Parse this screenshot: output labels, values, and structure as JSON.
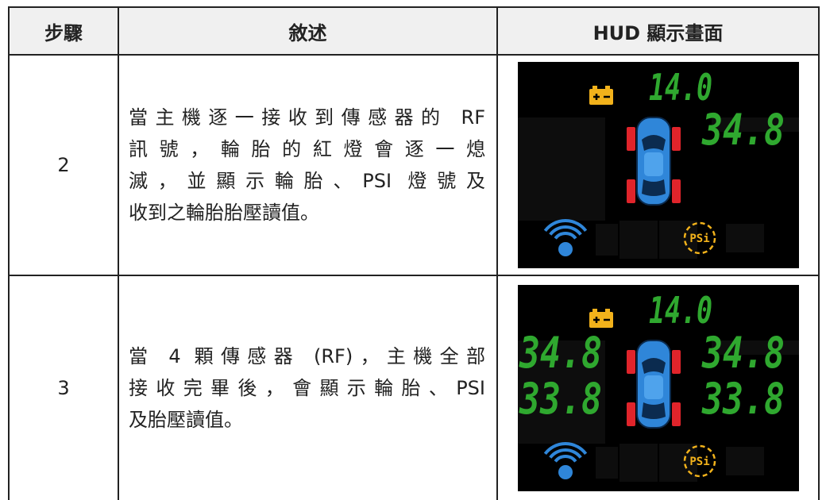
{
  "table": {
    "header": [
      "步驟",
      "敘述",
      "HUD 顯示畫面"
    ],
    "rows": [
      {
        "step": "2",
        "description": [
          "當主機逐一接收到傳感器的 RF",
          "訊號，輪胎的紅燈會逐一熄",
          "滅，並顯示輪胎、PSI 燈號及",
          "收到之輪胎胎壓讀值。"
        ],
        "hud": {
          "voltage": "14.0",
          "front_right": "34.8",
          "unit": "PSi"
        }
      },
      {
        "step": "3",
        "description": [
          "當 4 顆傳感器 (RF)，主機全部",
          "接收完畢後，會顯示輪胎、PSI",
          "及胎壓讀值。"
        ],
        "hud": {
          "voltage": "14.0",
          "front_left": "34.8",
          "front_right": "34.8",
          "rear_left": "33.8",
          "rear_right": "33.8",
          "unit": "PSi"
        }
      }
    ]
  }
}
